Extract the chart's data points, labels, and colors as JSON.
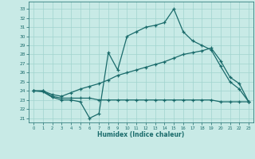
{
  "xlabel": "Humidex (Indice chaleur)",
  "background_color": "#c8eae6",
  "grid_color": "#a0d4ce",
  "line_color": "#1a6b6b",
  "xlim": [
    -0.5,
    23.5
  ],
  "ylim": [
    20.5,
    33.8
  ],
  "yticks": [
    21,
    22,
    23,
    24,
    25,
    26,
    27,
    28,
    29,
    30,
    31,
    32,
    33
  ],
  "xticks": [
    0,
    1,
    2,
    3,
    4,
    5,
    6,
    7,
    8,
    9,
    10,
    11,
    12,
    13,
    14,
    15,
    16,
    17,
    18,
    19,
    20,
    21,
    22,
    23
  ],
  "line1_y": [
    24.0,
    23.9,
    23.3,
    23.0,
    23.0,
    22.8,
    21.0,
    21.5,
    28.2,
    26.3,
    30.0,
    30.5,
    31.0,
    31.2,
    31.5,
    33.0,
    30.5,
    29.5,
    29.0,
    28.5,
    26.7,
    25.0,
    24.2,
    22.8
  ],
  "line2_y": [
    24.0,
    24.0,
    23.6,
    23.4,
    23.8,
    24.2,
    24.5,
    24.8,
    25.2,
    25.7,
    26.0,
    26.3,
    26.6,
    26.9,
    27.2,
    27.6,
    28.0,
    28.2,
    28.4,
    28.7,
    27.3,
    25.5,
    24.8,
    22.8
  ],
  "line3_y": [
    24.0,
    24.0,
    23.4,
    23.2,
    23.2,
    23.2,
    23.2,
    23.0,
    23.0,
    23.0,
    23.0,
    23.0,
    23.0,
    23.0,
    23.0,
    23.0,
    23.0,
    23.0,
    23.0,
    23.0,
    22.8,
    22.8,
    22.8,
    22.8
  ]
}
